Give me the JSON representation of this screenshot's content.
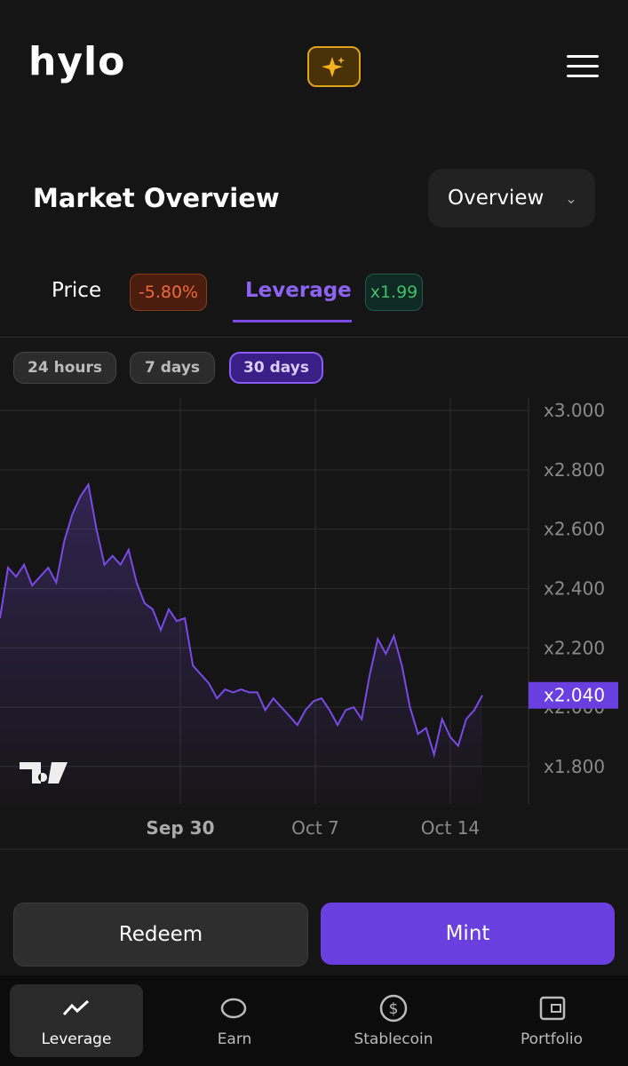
{
  "header": {
    "logo": "hylo"
  },
  "section": {
    "title": "Market Overview",
    "dropdown": "Overview"
  },
  "tabs": [
    {
      "label": "Price",
      "badge": "-5.80%"
    },
    {
      "label": "Leverage",
      "badge": "x1.99"
    }
  ],
  "ranges": [
    "24 hours",
    "7 days",
    "30 days"
  ],
  "chart_data": {
    "type": "line",
    "color": "#7b4ae6",
    "values": [
      2.3,
      2.47,
      2.44,
      2.48,
      2.41,
      2.44,
      2.47,
      2.42,
      2.56,
      2.65,
      2.71,
      2.75,
      2.6,
      2.48,
      2.51,
      2.48,
      2.53,
      2.42,
      2.35,
      2.33,
      2.26,
      2.33,
      2.29,
      2.3,
      2.14,
      2.11,
      2.08,
      2.03,
      2.06,
      2.05,
      2.06,
      2.05,
      2.05,
      1.99,
      2.03,
      2.0,
      1.97,
      1.94,
      1.99,
      2.02,
      2.03,
      1.99,
      1.94,
      1.99,
      2.0,
      1.96,
      2.11,
      2.23,
      2.18,
      2.24,
      2.14,
      2.0,
      1.91,
      1.93,
      1.84,
      1.96,
      1.9,
      1.87,
      1.96,
      1.99,
      2.04
    ],
    "xlim": [
      0,
      65.75
    ],
    "xticks": [
      {
        "value": 22.43,
        "label": "Sep 30"
      },
      {
        "value": 39.23,
        "label": "Oct 7"
      },
      {
        "value": 56.02,
        "label": "Oct 14"
      }
    ],
    "ylim": [
      1.674,
      3.042
    ],
    "yticks": [
      {
        "value": 1.8,
        "label": "x1.800"
      },
      {
        "value": 2.0,
        "label": "x2.000"
      },
      {
        "value": 2.2,
        "label": "x2.200"
      },
      {
        "value": 2.4,
        "label": "x2.400"
      },
      {
        "value": 2.6,
        "label": "x2.600"
      },
      {
        "value": 2.8,
        "label": "x2.800"
      },
      {
        "value": 3.0,
        "label": "x3.000"
      }
    ],
    "grid": true,
    "annotation": {
      "value": 2.04,
      "label": "x2.040"
    }
  },
  "actions": [
    "Redeem",
    "Mint"
  ],
  "nav": [
    "Leverage",
    "Earn",
    "Stablecoin",
    "Portfolio"
  ]
}
